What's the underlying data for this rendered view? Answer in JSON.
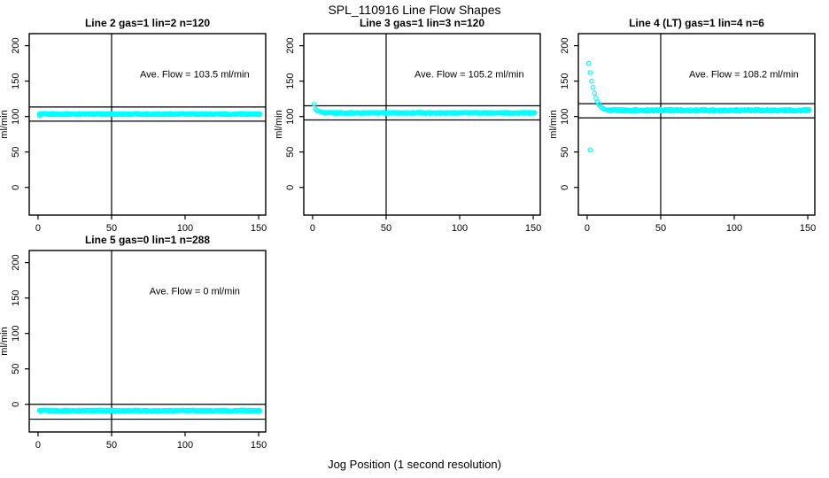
{
  "figure": {
    "title": "SPL_110916  Line Flow Shapes",
    "xlabel": "Jog Position (1 second resolution)",
    "background": "#ffffff",
    "point_color": "#00ffff",
    "line_color": "#000000"
  },
  "chart_data": [
    {
      "type": "scatter",
      "title": "Line 2 gas=1 lin=2 n=120",
      "annotation": "Ave. Flow =  103.5  ml/min",
      "ave_flow_ml_min": 103.5,
      "ylabel": "ml/min",
      "xticks": [
        0,
        50,
        100,
        150
      ],
      "yticks": [
        0,
        50,
        100,
        150,
        200
      ],
      "xlim": [
        -6,
        154.8
      ],
      "ylim": [
        -39,
        217
      ],
      "vline_x": 50,
      "hlines": [
        113.5,
        93.5
      ],
      "band": {
        "x_start": 1,
        "x_end": 151,
        "y": 103.5,
        "noise": 0.9,
        "n": 300
      },
      "points": [
        [
          1,
          101.5
        ],
        [
          2,
          102.5
        ]
      ]
    },
    {
      "type": "scatter",
      "title": "Line 3 gas=1 lin=3 n=120",
      "annotation": "Ave. Flow =  105.2  ml/min",
      "ave_flow_ml_min": 105.2,
      "ylabel": "ml/min",
      "xticks": [
        0,
        50,
        100,
        150
      ],
      "yticks": [
        0,
        50,
        100,
        150,
        200
      ],
      "xlim": [
        -6,
        154.8
      ],
      "ylim": [
        -39,
        217
      ],
      "vline_x": 50,
      "hlines": [
        115.2,
        95.2
      ],
      "band": {
        "x_start": 8,
        "x_end": 151,
        "y": 105.2,
        "noise": 0.8,
        "n": 290
      },
      "points": [
        [
          1,
          117.5
        ],
        [
          2,
          110.5
        ],
        [
          3,
          108.5
        ],
        [
          4,
          107.5
        ],
        [
          5,
          107
        ],
        [
          6,
          106.5
        ],
        [
          7,
          106
        ]
      ]
    },
    {
      "type": "scatter",
      "title": "Line 4 (LT) gas=1 lin=4 n=6",
      "annotation": "Ave. Flow =  108.2  ml/min",
      "ave_flow_ml_min": 108.2,
      "ylabel": "ml/min",
      "xticks": [
        0,
        50,
        100,
        150
      ],
      "yticks": [
        0,
        50,
        100,
        150,
        200
      ],
      "xlim": [
        -6,
        154.8
      ],
      "ylim": [
        -39,
        217
      ],
      "vline_x": 50,
      "hlines": [
        118.2,
        98.2
      ],
      "band": {
        "x_start": 15,
        "x_end": 151,
        "y": 108.8,
        "noise": 1.3,
        "n": 280
      },
      "points": [
        [
          1,
          175
        ],
        [
          2,
          162
        ],
        [
          2,
          53
        ],
        [
          3,
          150
        ],
        [
          4,
          141
        ],
        [
          5,
          133
        ],
        [
          6,
          126
        ],
        [
          7,
          121
        ],
        [
          8,
          117.5
        ],
        [
          9,
          114.5
        ],
        [
          10,
          112.5
        ],
        [
          11,
          111
        ],
        [
          12,
          110.2
        ],
        [
          13,
          109.6
        ],
        [
          14,
          109.2
        ]
      ]
    },
    {
      "type": "scatter",
      "title": "Line 5 gas=0 lin=1 n=288",
      "annotation": "Ave. Flow =  0  ml/min",
      "ave_flow_ml_min": 0,
      "ylabel": "ml/min",
      "xticks": [
        0,
        50,
        100,
        150
      ],
      "yticks": [
        0,
        50,
        100,
        150,
        200
      ],
      "xlim": [
        -6,
        154.8
      ],
      "ylim": [
        -39,
        217
      ],
      "vline_x": 50,
      "hlines": [
        0,
        -21
      ],
      "band": {
        "x_start": 1,
        "x_end": 151,
        "y": -9,
        "noise": 0.9,
        "n": 300
      },
      "points": []
    }
  ],
  "layout_note": "2x3 panel grid, bottom-middle and bottom-right cells empty"
}
